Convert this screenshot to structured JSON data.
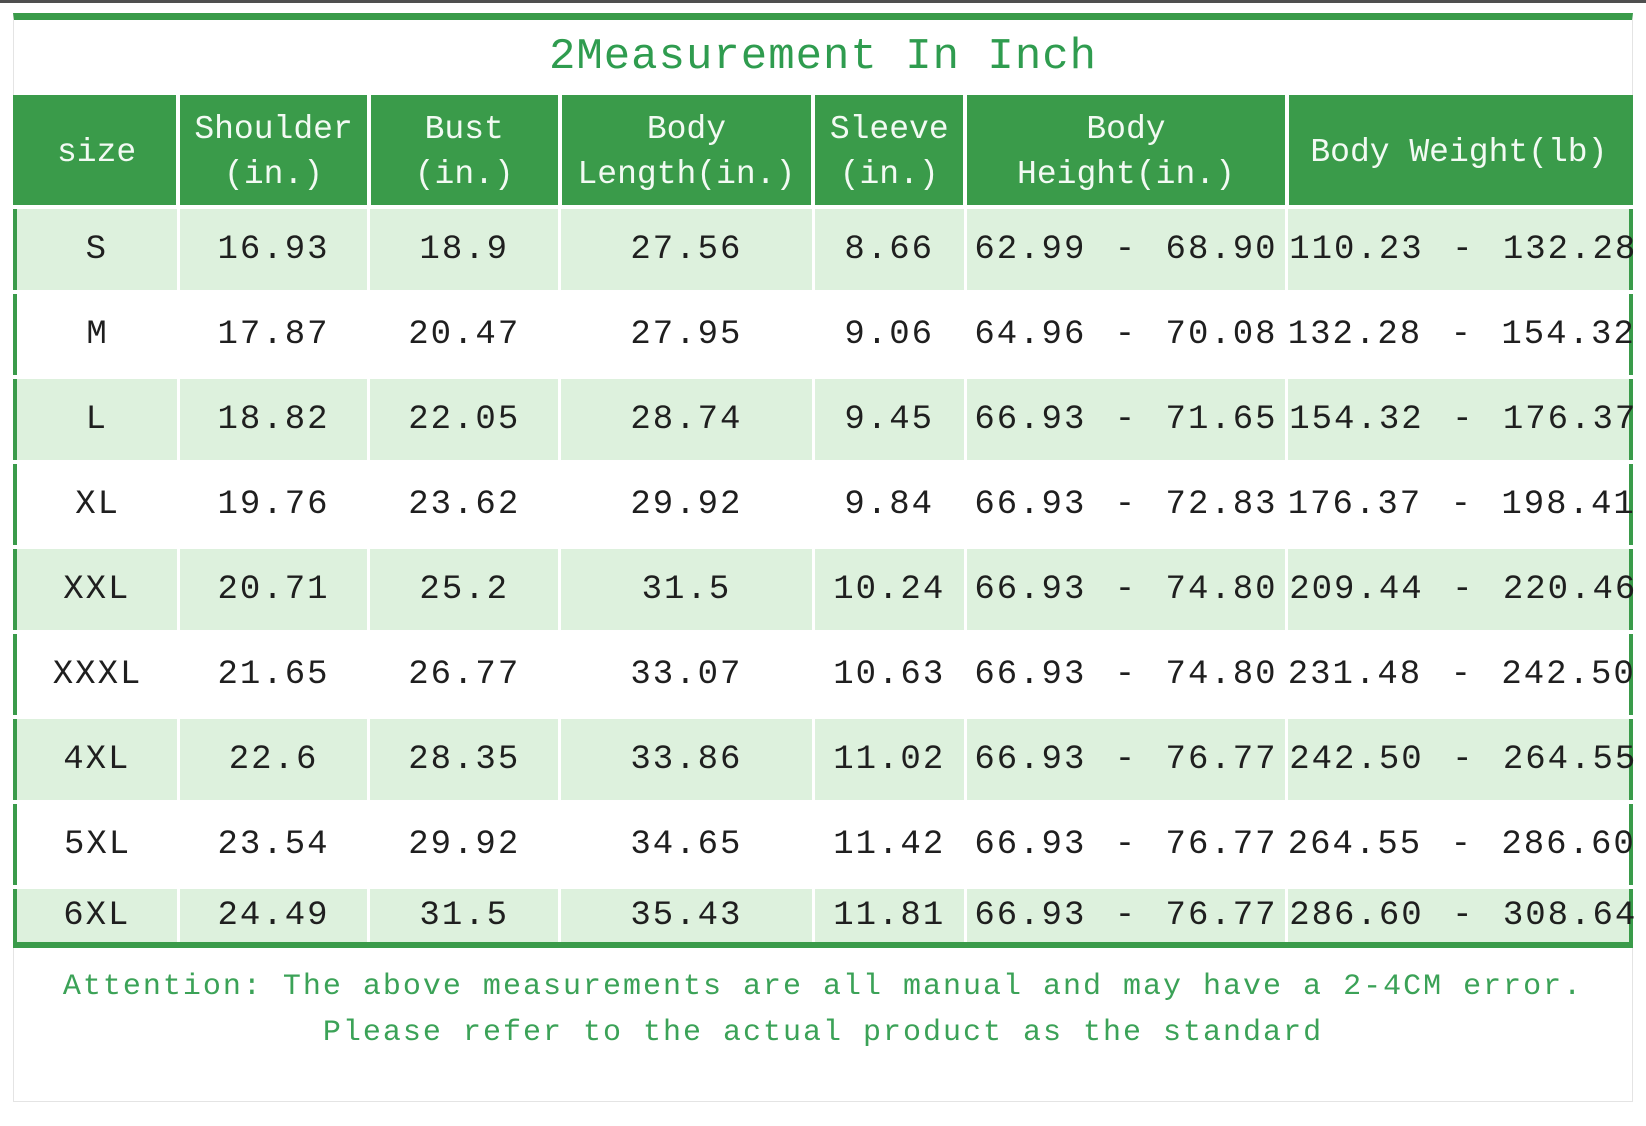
{
  "title": "2Measurement In Inch",
  "colors": {
    "green": "#3a9b4a",
    "header_text": "#f2faf3",
    "stripe_green": "#ddf1dd",
    "title_text": "#2f9c4f",
    "note_text": "#3ba257",
    "cell_text": "#1f1f1f",
    "top_line": "#4f4f4f",
    "panel_border": "#e4e4e4"
  },
  "table": {
    "columns": [
      {
        "id": "size",
        "lines": [
          "size"
        ]
      },
      {
        "id": "shoulder",
        "lines": [
          "Shoulder",
          "(in.)"
        ]
      },
      {
        "id": "bust",
        "lines": [
          "Bust",
          "(in.)"
        ]
      },
      {
        "id": "body-length",
        "lines": [
          "Body",
          "Length(in.)"
        ]
      },
      {
        "id": "sleeve",
        "lines": [
          "Sleeve",
          "(in.)"
        ]
      },
      {
        "id": "body-height",
        "lines": [
          "Body",
          "Height(in.)"
        ]
      },
      {
        "id": "body-weight",
        "lines": [
          "Body Weight(lb)"
        ]
      }
    ],
    "rows": [
      [
        "S",
        "16.93",
        "18.9",
        "27.56",
        "8.66",
        "62.99 - 68.90",
        "110.23 - 132.28"
      ],
      [
        "M",
        "17.87",
        "20.47",
        "27.95",
        "9.06",
        "64.96 - 70.08",
        "132.28 - 154.32"
      ],
      [
        "L",
        "18.82",
        "22.05",
        "28.74",
        "9.45",
        "66.93 - 71.65",
        "154.32 - 176.37"
      ],
      [
        "XL",
        "19.76",
        "23.62",
        "29.92",
        "9.84",
        "66.93 - 72.83",
        "176.37 - 198.41"
      ],
      [
        "XXL",
        "20.71",
        "25.2",
        "31.5",
        "10.24",
        "66.93 - 74.80",
        "209.44 - 220.46"
      ],
      [
        "XXXL",
        "21.65",
        "26.77",
        "33.07",
        "10.63",
        "66.93 - 74.80",
        "231.48 - 242.50"
      ],
      [
        "4XL",
        "22.6",
        "28.35",
        "33.86",
        "11.02",
        "66.93 - 76.77",
        "242.50 - 264.55"
      ],
      [
        "5XL",
        "23.54",
        "29.92",
        "34.65",
        "11.42",
        "66.93 - 76.77",
        "264.55 - 286.60"
      ],
      [
        "6XL",
        "24.49",
        "31.5",
        "35.43",
        "11.81",
        "66.93 - 76.77",
        "286.60 - 308.64"
      ]
    ]
  },
  "note": {
    "line1": "Attention: The above measurements are all manual and may have a 2-4CM error.",
    "line2": "Please refer to the actual product as the standard"
  }
}
